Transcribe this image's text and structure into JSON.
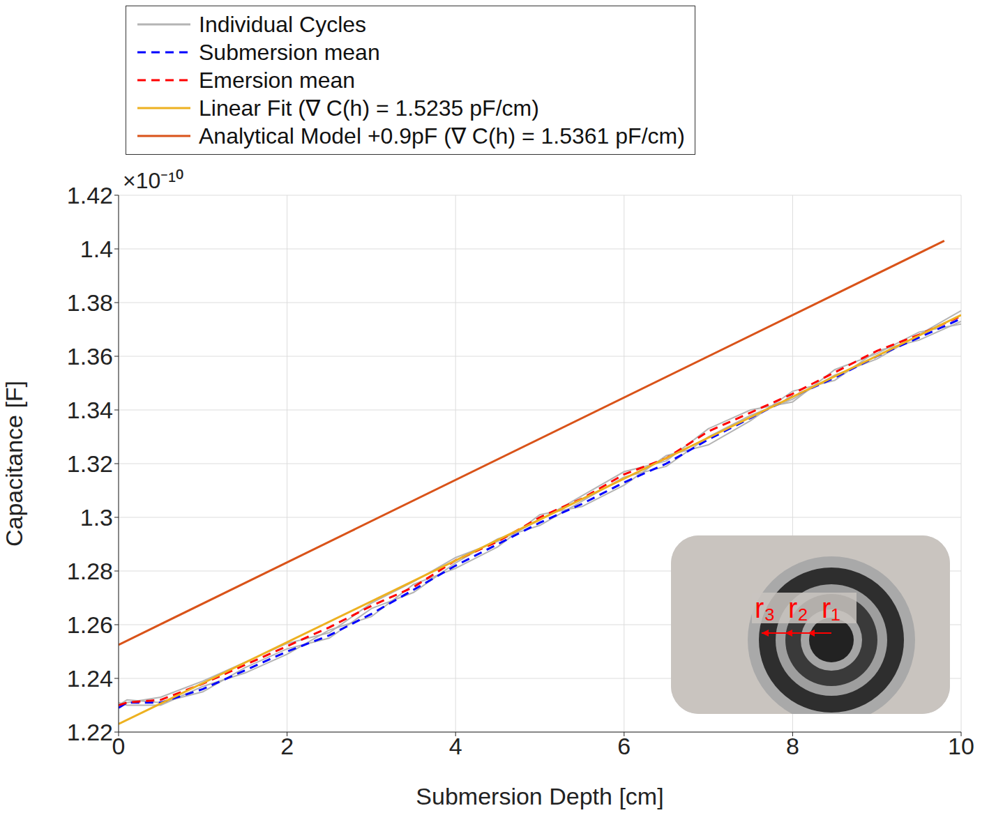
{
  "chart_data": {
    "type": "line",
    "xlabel": "Submersion Depth [cm]",
    "ylabel": "Capacitance [F]",
    "y_scale_label": "×10⁻¹⁰",
    "xlim": [
      0,
      10
    ],
    "xticks": [
      0,
      2,
      4,
      6,
      8,
      10
    ],
    "ylim": [
      1.22e-10,
      1.42e-10
    ],
    "yticks": [
      {
        "value": 1.22e-10,
        "label": "1.22"
      },
      {
        "value": 1.24e-10,
        "label": "1.24"
      },
      {
        "value": 1.26e-10,
        "label": "1.26"
      },
      {
        "value": 1.28e-10,
        "label": "1.28"
      },
      {
        "value": 1.3e-10,
        "label": "1.3"
      },
      {
        "value": 1.32e-10,
        "label": "1.32"
      },
      {
        "value": 1.34e-10,
        "label": "1.34"
      },
      {
        "value": 1.36e-10,
        "label": "1.36"
      },
      {
        "value": 1.38e-10,
        "label": "1.38"
      },
      {
        "value": 1.4e-10,
        "label": "1.4"
      },
      {
        "value": 1.42e-10,
        "label": "1.42"
      }
    ],
    "grid": true,
    "legend": "top",
    "annotations": [
      "r₃",
      "r₂",
      "r₁"
    ],
    "series": [
      {
        "name": "Individual Cycles",
        "color": "#b4b4b4",
        "line_style": "solid",
        "x": [
          0,
          0.1,
          0.5,
          1,
          1.5,
          2,
          2.5,
          3,
          3.5,
          4,
          4.5,
          5,
          5.5,
          6,
          6.5,
          7,
          7.5,
          8,
          8.5,
          9,
          9.5,
          10
        ],
        "cycles": [
          [
            1.23e-10,
            1.232e-10,
            1.231e-10,
            1.235e-10,
            1.244e-10,
            1.251e-10,
            1.255e-10,
            1.266e-10,
            1.272e-10,
            1.283e-10,
            1.292e-10,
            1.297e-10,
            1.306e-10,
            1.315e-10,
            1.319e-10,
            1.33e-10,
            1.338e-10,
            1.344e-10,
            1.353e-10,
            1.359e-10,
            1.368e-10,
            1.377e-10
          ],
          [
            1.231e-10,
            1.23e-10,
            1.23e-10,
            1.237e-10,
            1.242e-10,
            1.249e-10,
            1.258e-10,
            1.263e-10,
            1.275e-10,
            1.281e-10,
            1.289e-10,
            1.301e-10,
            1.304e-10,
            1.312e-10,
            1.323e-10,
            1.327e-10,
            1.336e-10,
            1.347e-10,
            1.351e-10,
            1.362e-10,
            1.366e-10,
            1.373e-10
          ],
          [
            1.229e-10,
            1.231e-10,
            1.233e-10,
            1.239e-10,
            1.246e-10,
            1.253e-10,
            1.257e-10,
            1.268e-10,
            1.276e-10,
            1.285e-10,
            1.291e-10,
            1.299e-10,
            1.308e-10,
            1.317e-10,
            1.321e-10,
            1.333e-10,
            1.34e-10,
            1.343e-10,
            1.355e-10,
            1.361e-10,
            1.369e-10,
            1.372e-10
          ]
        ]
      },
      {
        "name": "Submersion mean",
        "color": "#0000ff",
        "line_style": "dashed",
        "x": [
          0,
          0.1,
          0.5,
          1,
          1.5,
          2,
          2.5,
          3,
          3.5,
          4,
          4.5,
          5,
          5.5,
          6,
          6.5,
          7,
          7.5,
          8,
          8.5,
          9,
          9.5,
          10
        ],
        "values": [
          1.229e-10,
          1.231e-10,
          1.231e-10,
          1.236e-10,
          1.243e-10,
          1.25e-10,
          1.256e-10,
          1.264e-10,
          1.273e-10,
          1.282e-10,
          1.29e-10,
          1.298e-10,
          1.305e-10,
          1.313e-10,
          1.32e-10,
          1.329e-10,
          1.337e-10,
          1.345e-10,
          1.352e-10,
          1.36e-10,
          1.367e-10,
          1.374e-10
        ]
      },
      {
        "name": "Emersion mean",
        "color": "#ff0000",
        "line_style": "dashed",
        "x": [
          0,
          0.1,
          0.5,
          1,
          1.5,
          2,
          2.5,
          3,
          3.5,
          4,
          4.5,
          5,
          5.5,
          6,
          6.5,
          7,
          7.5,
          8,
          8.5,
          9,
          9.5,
          10
        ],
        "values": [
          1.23e-10,
          1.231e-10,
          1.232e-10,
          1.238e-10,
          1.245e-10,
          1.252e-10,
          1.259e-10,
          1.267e-10,
          1.274e-10,
          1.284e-10,
          1.291e-10,
          1.3e-10,
          1.307e-10,
          1.316e-10,
          1.322e-10,
          1.332e-10,
          1.339e-10,
          1.346e-10,
          1.354e-10,
          1.362e-10,
          1.368e-10,
          1.375e-10
        ]
      },
      {
        "name": "Linear Fit (∇ C(h) = 1.5235 pF/cm)",
        "color": "#edb120",
        "line_style": "solid",
        "x": [
          0,
          10
        ],
        "values": [
          1.223e-10,
          1.37535e-10
        ]
      },
      {
        "name": "Analytical Model +0.9pF (∇ C(h) = 1.5361 pF/cm)",
        "color": "#d95319",
        "line_style": "solid",
        "x": [
          0,
          9.8
        ],
        "values": [
          1.2525e-10,
          1.403e-10
        ]
      }
    ]
  }
}
